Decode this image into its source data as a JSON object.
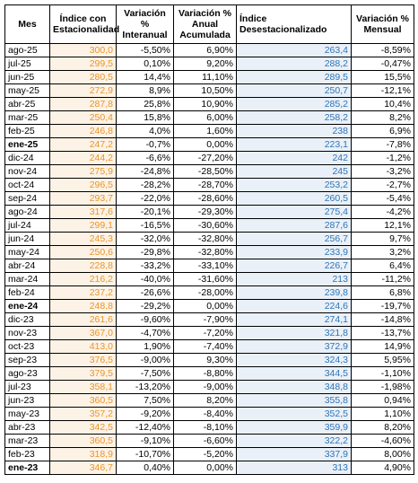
{
  "table": {
    "header": [
      "Mes",
      "Índice con Estacionalidad",
      "Variación % Interanual",
      "Variación % Anual Acumulada",
      "Índice Desestacionalizado",
      "Variación % Mensual"
    ],
    "rows": [
      [
        "ago-25",
        "300,0",
        "-5,50%",
        "6,90%",
        "263,4",
        "-8,59%"
      ],
      [
        "jul-25",
        "299,5",
        "0,10%",
        "9,20%",
        "288,2",
        "-0,47%"
      ],
      [
        "jun-25",
        "280,5",
        "14,4%",
        "11,10%",
        "289,5",
        "15,5%"
      ],
      [
        "may-25",
        "272,9",
        "8,9%",
        "10,50%",
        "250,7",
        "-12,1%"
      ],
      [
        "abr-25",
        "287,8",
        "25,8%",
        "10,90%",
        "285,2",
        "10,4%"
      ],
      [
        "mar-25",
        "250,4",
        "15,8%",
        "6,00%",
        "258,2",
        "8,2%"
      ],
      [
        "feb-25",
        "246,8",
        "4,0%",
        "1,60%",
        "238",
        "6,9%"
      ],
      [
        "ene-25",
        "247,2",
        "-0,7%",
        "0,00%",
        "223,1",
        "-7,8%"
      ],
      [
        "dic-24",
        "244,2",
        "-6,6%",
        "-27,20%",
        "242",
        "-1,2%"
      ],
      [
        "nov-24",
        "275,9",
        "-24,8%",
        "-28,50%",
        "245",
        "-3,2%"
      ],
      [
        "oct-24",
        "296,5",
        "-28,2%",
        "-28,70%",
        "253,2",
        "-2,7%"
      ],
      [
        "sep-24",
        "293,7",
        "-22,0%",
        "-28,60%",
        "260,5",
        "-5,4%"
      ],
      [
        "ago-24",
        "317,6",
        "-20,1%",
        "-29,30%",
        "275,4",
        "-4,2%"
      ],
      [
        "jul-24",
        "299,1",
        "-16,5%",
        "-30,60%",
        "287,6",
        "12,1%"
      ],
      [
        "jun-24",
        "245,3",
        "-32,0%",
        "-32,80%",
        "256,7",
        "9,7%"
      ],
      [
        "may-24",
        "250,6",
        "-29,8%",
        "-32,80%",
        "233,9",
        "3,2%"
      ],
      [
        "abr-24",
        "228,8",
        "-33,2%",
        "-33,10%",
        "226,7",
        "6,4%"
      ],
      [
        "mar-24",
        "216,2",
        "-40,0%",
        "-31,60%",
        "213",
        "-11,2%"
      ],
      [
        "feb-24",
        "237,2",
        "-26,6%",
        "-28,00%",
        "239,8",
        "6,8%"
      ],
      [
        "ene-24",
        "248,8",
        "-29,2%",
        "0,00%",
        "224,6",
        "-19,7%"
      ],
      [
        "dic-23",
        "261,6",
        "-9,60%",
        "-7,90%",
        "274,1",
        "-14,8%"
      ],
      [
        "nov-23",
        "367,0",
        "-4,70%",
        "-7,20%",
        "321,8",
        "-13,7%"
      ],
      [
        "oct-23",
        "413,0",
        "1,90%",
        "-7,40%",
        "372,9",
        "14,9%"
      ],
      [
        "sep-23",
        "376,5",
        "-9,00%",
        "9,30%",
        "324,3",
        "5,95%"
      ],
      [
        "ago-23",
        "379,5",
        "-7,50%",
        "-8,80%",
        "344,5",
        "-1,10%"
      ],
      [
        "jul-23",
        "358,1",
        "-13,20%",
        "-9,00%",
        "348,8",
        "-1,98%"
      ],
      [
        "jun-23",
        "360,5",
        "7,50%",
        "8,20%",
        "355,8",
        "0,94%"
      ],
      [
        "may-23",
        "357,2",
        "-9,20%",
        "-8,40%",
        "352,5",
        "1,10%"
      ],
      [
        "abr-23",
        "342,5",
        "-12,40%",
        "-8,10%",
        "359,9",
        "8,20%"
      ],
      [
        "mar-23",
        "360,5",
        "-9,10%",
        "-6,60%",
        "322,2",
        "-4,60%"
      ],
      [
        "feb-23",
        "318,9",
        "-10,70%",
        "-5,20%",
        "337,9",
        "8,00%"
      ],
      [
        "ene-23",
        "346,7",
        "0,40%",
        "0,00%",
        "313",
        "4,90%"
      ]
    ]
  }
}
